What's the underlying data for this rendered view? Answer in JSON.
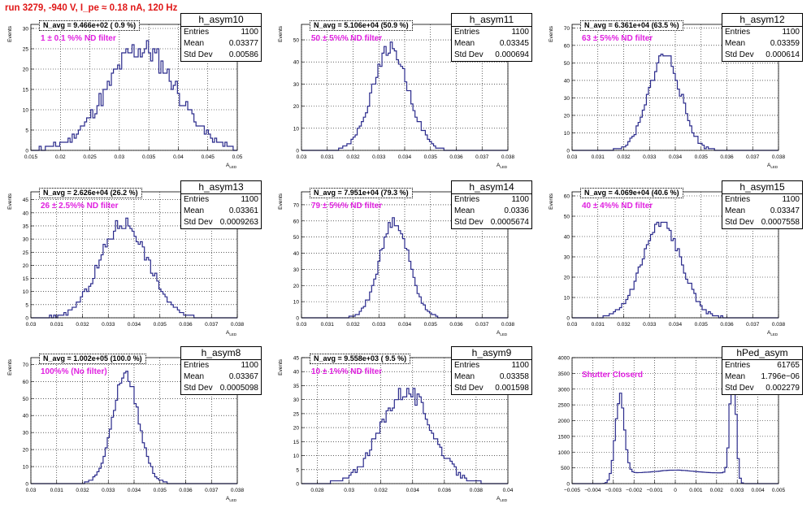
{
  "header": {
    "run_title": "run 3279,  -940 V, I_pe ≈ 0.18 nA, 120 Hz"
  },
  "style": {
    "histogram_color": "#2b2b8c",
    "title_color": "#e01818",
    "annotation_color": "#e020e0"
  },
  "chart_data": [
    {
      "type": "histogram",
      "name": "h_asym10",
      "navg_text": "N_avg = 9.466e+02 ( 0.9 %)",
      "annotation": "1 ± 0.1 %% ND filter",
      "stats": {
        "entries": "1100",
        "mean": "0.03377",
        "std_dev": "0.00586"
      },
      "xlabel": "A_LED",
      "ylabel": "Events",
      "xlim": [
        0.015,
        0.05
      ],
      "ylim": [
        0,
        31
      ],
      "xticks": [
        "0.015",
        "0.02",
        "0.025",
        "0.03",
        "0.035",
        "0.04",
        "0.045",
        "0.05"
      ],
      "yticks": [
        "0",
        "5",
        "10",
        "15",
        "20",
        "25",
        "30"
      ],
      "shape": {
        "kind": "gauss",
        "components": [
          {
            "mu": 0.03377,
            "sigma": 0.00586,
            "amp": 1
          }
        ],
        "peak": 25,
        "seed": 11,
        "noise": 0.35
      }
    },
    {
      "type": "histogram",
      "name": "h_asym11",
      "navg_text": "N_avg = 5.106e+04 (50.9 %)",
      "annotation": "50 ± 5%% ND filter",
      "stats": {
        "entries": "1100",
        "mean": "0.03345",
        "std_dev": "0.000694"
      },
      "xlabel": "A_LED",
      "ylabel": "Events",
      "xlim": [
        0.03,
        0.038
      ],
      "ylim": [
        0,
        57
      ],
      "xticks": [
        "0.03",
        "0.031",
        "0.032",
        "0.033",
        "0.034",
        "0.035",
        "0.036",
        "0.037",
        "0.038"
      ],
      "yticks": [
        "0",
        "10",
        "20",
        "30",
        "40",
        "50"
      ],
      "shape": {
        "kind": "gauss",
        "components": [
          {
            "mu": 0.03345,
            "sigma": 0.000694,
            "amp": 1
          }
        ],
        "peak": 46,
        "seed": 22,
        "noise": 0.25
      }
    },
    {
      "type": "histogram",
      "name": "h_asym12",
      "navg_text": "N_avg = 6.361e+04 (63.5 %)",
      "annotation": "63 ± 5%% ND filter",
      "stats": {
        "entries": "1100",
        "mean": "0.03359",
        "std_dev": "0.000614"
      },
      "xlabel": "A_LED",
      "ylabel": "Events",
      "xlim": [
        0.03,
        0.038
      ],
      "ylim": [
        0,
        72
      ],
      "xticks": [
        "0.03",
        "0.031",
        "0.032",
        "0.033",
        "0.034",
        "0.035",
        "0.036",
        "0.037",
        "0.038"
      ],
      "yticks": [
        "0",
        "10",
        "20",
        "30",
        "40",
        "50",
        "60",
        "70"
      ],
      "shape": {
        "kind": "gauss",
        "components": [
          {
            "mu": 0.03359,
            "sigma": 0.000614,
            "amp": 1
          }
        ],
        "peak": 55,
        "seed": 33,
        "noise": 0.3
      }
    },
    {
      "type": "histogram",
      "name": "h_asym13",
      "navg_text": "N_avg = 2.626e+04 (26.2 %)",
      "annotation": "26 ± 2.5%% ND filter",
      "stats": {
        "entries": "1100",
        "mean": "0.03361",
        "std_dev": "0.0009263"
      },
      "xlabel": "A_LED",
      "ylabel": "Events",
      "xlim": [
        0.03,
        0.038
      ],
      "ylim": [
        0,
        48
      ],
      "xticks": [
        "0.03",
        "0.031",
        "0.032",
        "0.033",
        "0.034",
        "0.035",
        "0.036",
        "0.037",
        "0.038"
      ],
      "yticks": [
        "0",
        "5",
        "10",
        "15",
        "20",
        "25",
        "30",
        "35",
        "40",
        "45"
      ],
      "shape": {
        "kind": "gauss",
        "components": [
          {
            "mu": 0.03361,
            "sigma": 0.0009263,
            "amp": 1
          }
        ],
        "peak": 36,
        "seed": 44,
        "noise": 0.28
      }
    },
    {
      "type": "histogram",
      "name": "h_asym14",
      "navg_text": "N_avg = 7.951e+04 (79.3 %)",
      "annotation": "79 ± 5%% ND filter",
      "stats": {
        "entries": "1100",
        "mean": "0.0336",
        "std_dev": "0.0005674"
      },
      "xlabel": "A_LED",
      "ylabel": "Events",
      "xlim": [
        0.03,
        0.038
      ],
      "ylim": [
        0,
        78
      ],
      "xticks": [
        "0.03",
        "0.031",
        "0.032",
        "0.033",
        "0.034",
        "0.035",
        "0.036",
        "0.037",
        "0.038"
      ],
      "yticks": [
        "0",
        "10",
        "20",
        "30",
        "40",
        "50",
        "60",
        "70"
      ],
      "shape": {
        "kind": "gauss",
        "components": [
          {
            "mu": 0.0336,
            "sigma": 0.0005674,
            "amp": 1
          }
        ],
        "peak": 60,
        "seed": 55,
        "noise": 0.25
      }
    },
    {
      "type": "histogram",
      "name": "h_asym15",
      "navg_text": "N_avg = 4.069e+04 (40.6 %)",
      "annotation": "40 ± 4%% ND filter",
      "stats": {
        "entries": "1100",
        "mean": "0.03347",
        "std_dev": "0.0007558"
      },
      "xlabel": "A_LED",
      "ylabel": "Events",
      "xlim": [
        0.03,
        0.038
      ],
      "ylim": [
        0,
        62
      ],
      "xticks": [
        "0.03",
        "0.031",
        "0.032",
        "0.033",
        "0.034",
        "0.035",
        "0.036",
        "0.037",
        "0.038"
      ],
      "yticks": [
        "0",
        "10",
        "20",
        "30",
        "40",
        "50",
        "60"
      ],
      "shape": {
        "kind": "gauss",
        "components": [
          {
            "mu": 0.03347,
            "sigma": 0.0007558,
            "amp": 1
          }
        ],
        "peak": 46,
        "seed": 66,
        "noise": 0.28
      }
    },
    {
      "type": "histogram",
      "name": "h_asym8",
      "navg_text": "N_avg = 1.002e+05 (100.0 %)",
      "annotation": "100%% (No filter)",
      "stats": {
        "entries": "1100",
        "mean": "0.03367",
        "std_dev": "0.0005098"
      },
      "xlabel": "A_LED",
      "ylabel": "Events",
      "xlim": [
        0.03,
        0.038
      ],
      "ylim": [
        0,
        74
      ],
      "xticks": [
        "0.03",
        "0.031",
        "0.032",
        "0.033",
        "0.034",
        "0.035",
        "0.036",
        "0.037",
        "0.038"
      ],
      "yticks": [
        "0",
        "10",
        "20",
        "30",
        "40",
        "50",
        "60",
        "70"
      ],
      "shape": {
        "kind": "gauss",
        "components": [
          {
            "mu": 0.03367,
            "sigma": 0.0005098,
            "amp": 1
          }
        ],
        "peak": 64,
        "seed": 77,
        "noise": 0.22
      }
    },
    {
      "type": "histogram",
      "name": "h_asym9",
      "navg_text": "N_avg = 9.558e+03 ( 9.5 %)",
      "annotation": "10 ± 1%% ND filter",
      "stats": {
        "entries": "1100",
        "mean": "0.03358",
        "std_dev": "0.001598"
      },
      "xlabel": "A_LED",
      "ylabel": "Events",
      "xlim": [
        0.027,
        0.04
      ],
      "ylim": [
        0,
        45
      ],
      "xticks": [
        "0.028",
        "0.03",
        "0.032",
        "0.034",
        "0.036",
        "0.038",
        "0.04"
      ],
      "yticks": [
        "0",
        "5",
        "10",
        "15",
        "20",
        "25",
        "30",
        "35",
        "40",
        "45"
      ],
      "shape": {
        "kind": "gauss",
        "components": [
          {
            "mu": 0.03358,
            "sigma": 0.001598,
            "amp": 1
          }
        ],
        "peak": 33,
        "seed": 88,
        "noise": 0.3
      }
    },
    {
      "type": "histogram",
      "name": "hPed_asym",
      "navg_text": "",
      "annotation": "Shutter Closerd",
      "stats": {
        "entries": "61765",
        "mean": "1.796e−06",
        "std_dev": "0.002279"
      },
      "xlabel": "",
      "ylabel": "",
      "xlim": [
        -0.005,
        0.005
      ],
      "ylim": [
        0,
        4000
      ],
      "xticks": [
        "−0.005",
        "−0.004",
        "−0.003",
        "−0.002",
        "−0.001",
        "0",
        "0.001",
        "0.002",
        "0.003",
        "0.004",
        "0.005"
      ],
      "yticks": [
        "0",
        "500",
        "1000",
        "1500",
        "2000",
        "2500",
        "3000",
        "3500",
        "4000"
      ],
      "shape": {
        "kind": "ped",
        "peak": 2600,
        "seed": 99,
        "noise": 0.04
      }
    }
  ]
}
